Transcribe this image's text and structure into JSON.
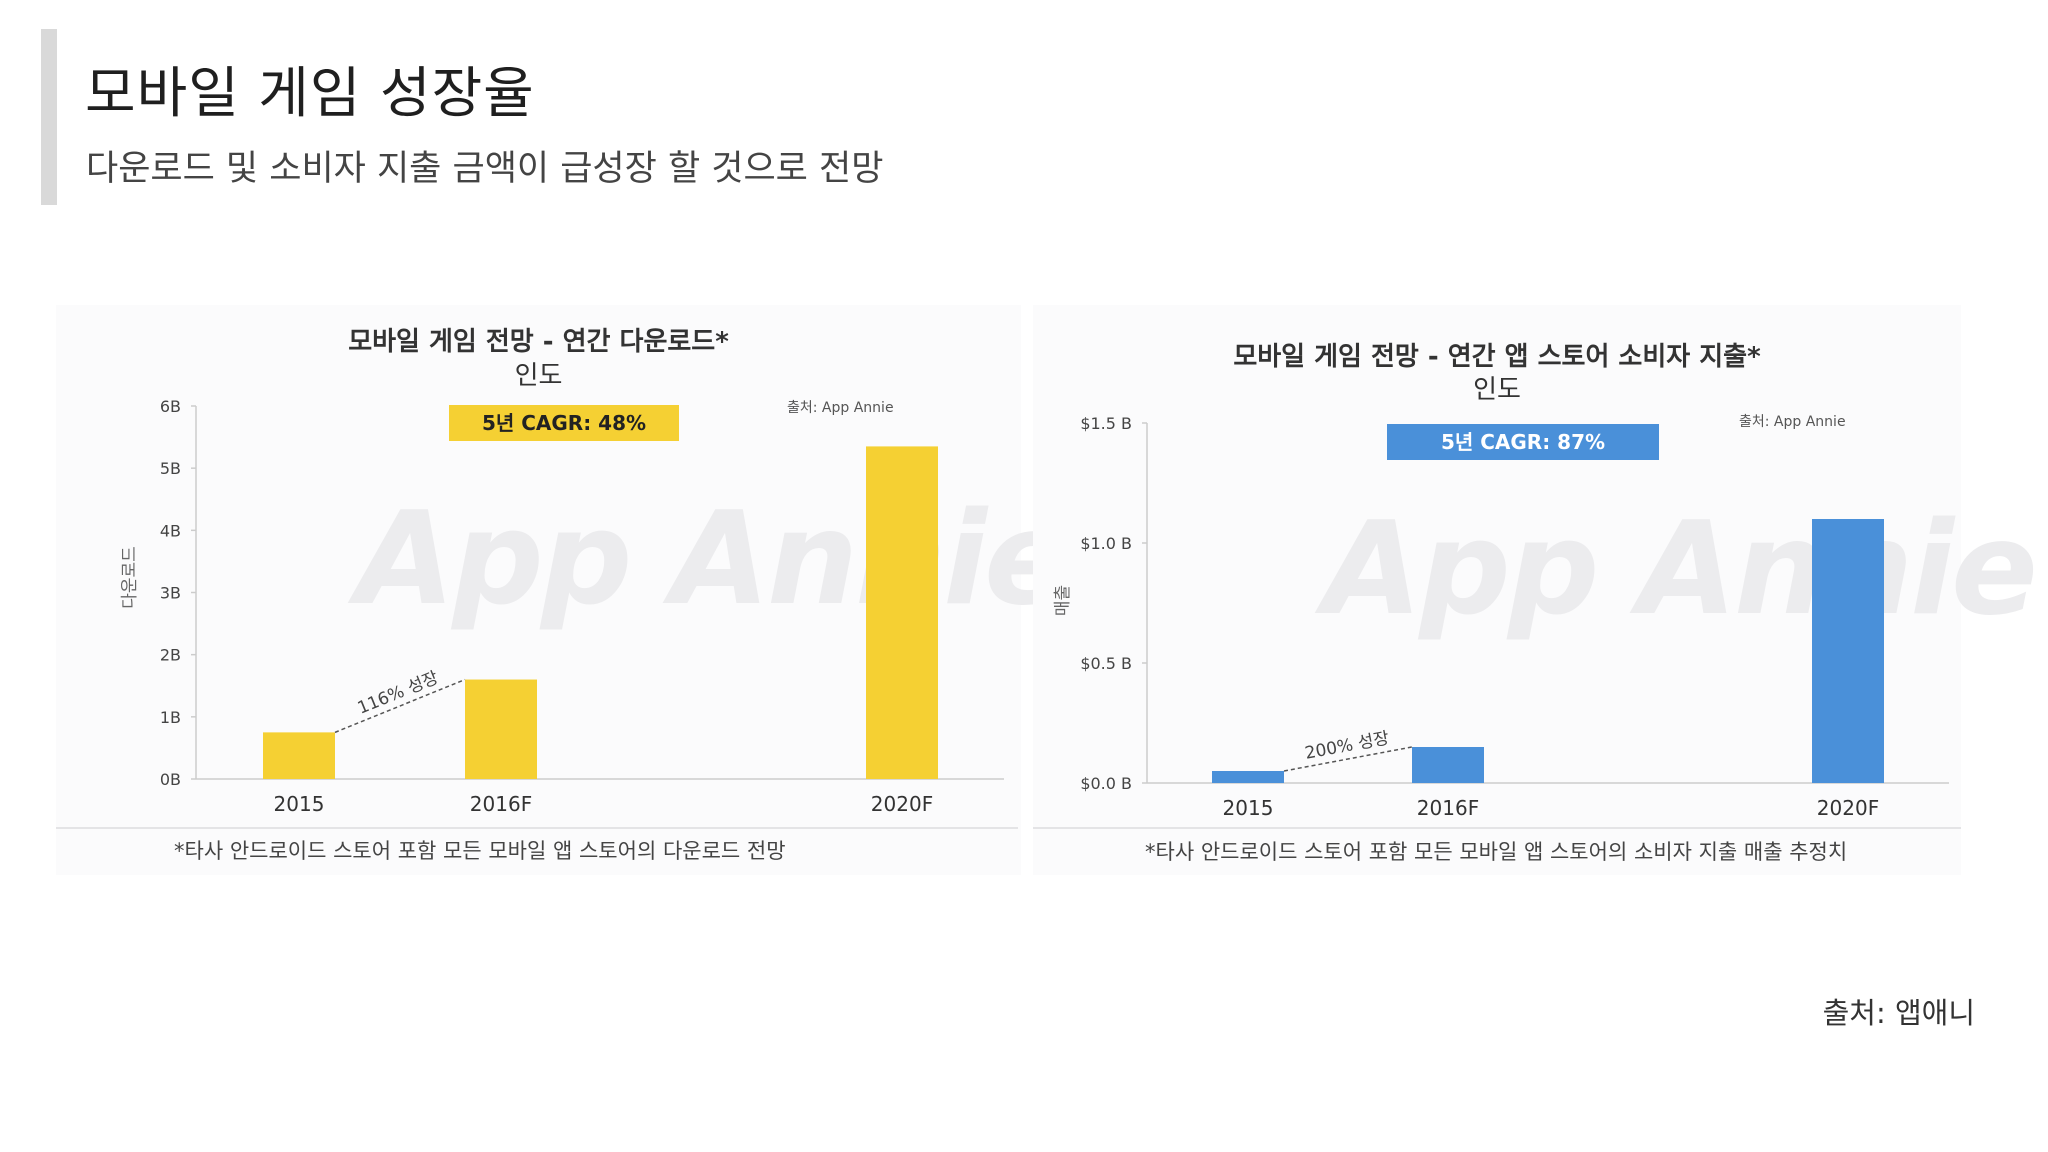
{
  "slide": {
    "title": "모바일 게임 성장율",
    "subtitle": "다운로드 및 소비자 지출 금액이 급성장 할 것으로 전망",
    "source": "출처: 앱애니"
  },
  "colors": {
    "downloads_bar": "#f5d033",
    "spend_bar": "#4a90d9",
    "axis": "#cccccc",
    "watermark": "#ececee"
  },
  "chart_data": [
    {
      "type": "bar",
      "title": "모바일 게임 전망 - 연간 다운로드*",
      "subtitle": "인도",
      "ylabel": "다운로드",
      "categories": [
        "2015",
        "2016F",
        "2020F"
      ],
      "values": [
        0.75,
        1.6,
        5.35
      ],
      "ylim": [
        0,
        6
      ],
      "yticks": [
        0,
        1,
        2,
        3,
        4,
        5,
        6
      ],
      "ytick_labels": [
        "0B",
        "1B",
        "2B",
        "3B",
        "4B",
        "5B",
        "6B"
      ],
      "cagr_label": "5년 CAGR: 48%",
      "growth_annotation": "116% 성장",
      "chart_source": "출처: App Annie",
      "watermark": "App Annie",
      "footnote": "*타사 안드로이드 스토어 포함 모든 모바일 앱 스토어의 다운로드 전망",
      "color": "#f5d033",
      "badge_color": "#f5d033",
      "badge_text_color": "#222222",
      "grid": false
    },
    {
      "type": "bar",
      "title": "모바일 게임 전망 - 연간 앱 스토어 소비자 지출*",
      "subtitle": "인도",
      "ylabel": "매출",
      "categories": [
        "2015",
        "2016F",
        "2020F"
      ],
      "values": [
        0.05,
        0.15,
        1.1
      ],
      "ylim": [
        0,
        1.5
      ],
      "yticks": [
        0,
        0.5,
        1.0,
        1.5
      ],
      "ytick_labels": [
        "$0.0 B",
        "$0.5 B",
        "$1.0 B",
        "$1.5 B"
      ],
      "cagr_label": "5년 CAGR: 87%",
      "growth_annotation": "200% 성장",
      "chart_source": "출처: App Annie",
      "watermark": "App Annie",
      "footnote": "*타사 안드로이드 스토어 포함 모든 모바일 앱 스토어의 소비자 지출 매출 추정치",
      "color": "#4a90d9",
      "badge_color": "#4a90d9",
      "badge_text_color": "#ffffff",
      "grid": false
    }
  ]
}
